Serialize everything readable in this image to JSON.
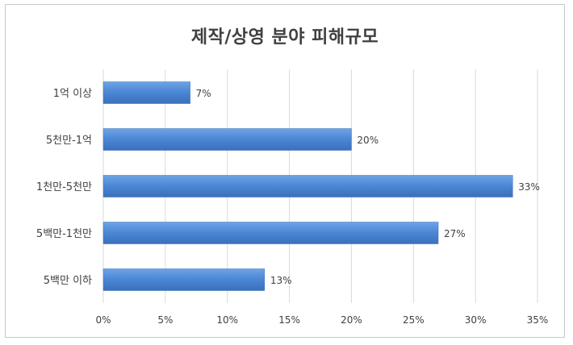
{
  "chart_data": {
    "type": "bar",
    "orientation": "horizontal",
    "title": "제작/상영 분야 피해규모",
    "categories": [
      "1억 이상",
      "5천만-1억",
      "1천만-5천만",
      "5백만-1천만",
      "5백만 이하"
    ],
    "values": [
      7,
      20,
      33,
      27,
      13
    ],
    "data_labels": [
      "7%",
      "20%",
      "33%",
      "27%",
      "13%"
    ],
    "xlim": [
      0,
      35
    ],
    "x_ticks": [
      0,
      5,
      10,
      15,
      20,
      25,
      30,
      35
    ],
    "x_tick_labels": [
      "0%",
      "5%",
      "10%",
      "15%",
      "20%",
      "25%",
      "30%",
      "35%"
    ],
    "grid": "vertical",
    "bar_color": "#4a86d4"
  }
}
